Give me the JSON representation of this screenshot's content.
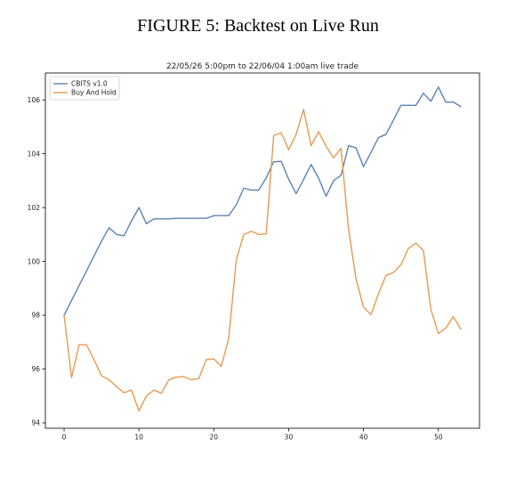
{
  "figure": {
    "caption": "FIGURE 5: Backtest on Live Run"
  },
  "chart_data": {
    "type": "line",
    "title": "22/05/26 5:00pm to 22/06/04 1:00am live trade",
    "xlabel": "",
    "ylabel": "",
    "xlim": [
      -2.5,
      55.5
    ],
    "ylim": [
      93.8,
      107.0
    ],
    "xticks": [
      0,
      10,
      20,
      30,
      40,
      50
    ],
    "yticks": [
      94,
      96,
      98,
      100,
      102,
      104,
      106
    ],
    "grid": false,
    "legend_position": "top-left",
    "series": [
      {
        "name": "CBITS v1.0",
        "color": "#5b84b1",
        "x": [
          0,
          1,
          2,
          3,
          4,
          5,
          6,
          7,
          8,
          9,
          10,
          11,
          12,
          13,
          14,
          15,
          16,
          17,
          18,
          19,
          20,
          21,
          22,
          23,
          24,
          25,
          26,
          27,
          28,
          29,
          30,
          31,
          32,
          33,
          34,
          35,
          36,
          37,
          38,
          39,
          40,
          41,
          42,
          43,
          44,
          45,
          46,
          47,
          48,
          49,
          50,
          51,
          52,
          53
        ],
        "values": [
          98.0,
          98.55,
          99.1,
          99.65,
          100.2,
          100.75,
          101.25,
          101.0,
          100.95,
          101.5,
          102.0,
          101.4,
          101.58,
          101.58,
          101.58,
          101.6,
          101.6,
          101.6,
          101.6,
          101.6,
          101.7,
          101.7,
          101.7,
          102.1,
          102.72,
          102.65,
          102.65,
          103.1,
          103.7,
          103.72,
          103.05,
          102.52,
          103.05,
          103.6,
          103.1,
          102.42,
          103.0,
          103.2,
          104.3,
          104.22,
          103.52,
          104.05,
          104.6,
          104.72,
          105.25,
          105.8,
          105.8,
          105.8,
          106.25,
          105.95,
          106.48,
          105.92,
          105.92,
          105.75
        ]
      },
      {
        "name": "Buy And Hold",
        "color": "#e89a50",
        "x": [
          0,
          1,
          2,
          3,
          4,
          5,
          6,
          7,
          8,
          9,
          10,
          11,
          12,
          13,
          14,
          15,
          16,
          17,
          18,
          19,
          20,
          21,
          22,
          23,
          24,
          25,
          26,
          27,
          28,
          29,
          30,
          31,
          32,
          33,
          34,
          35,
          36,
          37,
          38,
          39,
          40,
          41,
          42,
          43,
          44,
          45,
          46,
          47,
          48,
          49,
          50,
          51,
          52,
          53
        ],
        "values": [
          98.0,
          95.68,
          96.9,
          96.9,
          96.35,
          95.75,
          95.6,
          95.35,
          95.12,
          95.22,
          94.45,
          95.0,
          95.22,
          95.1,
          95.6,
          95.7,
          95.72,
          95.6,
          95.65,
          96.35,
          96.38,
          96.1,
          97.15,
          100.05,
          101.0,
          101.12,
          101.0,
          101.02,
          104.68,
          104.78,
          104.15,
          104.72,
          105.65,
          104.3,
          104.82,
          104.28,
          103.85,
          104.2,
          101.2,
          99.35,
          98.3,
          98.02,
          98.8,
          99.48,
          99.58,
          99.88,
          100.48,
          100.68,
          100.4,
          98.22,
          97.32,
          97.52,
          97.95,
          97.48
        ]
      }
    ]
  }
}
